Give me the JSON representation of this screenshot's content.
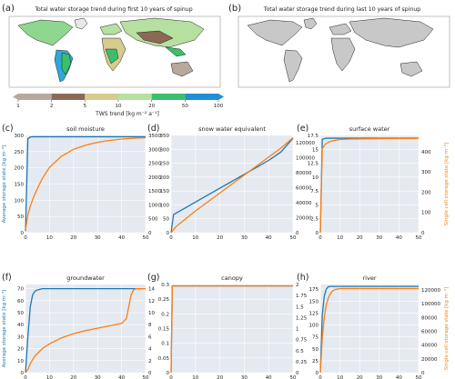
{
  "colors": {
    "blue": "#1f77b4",
    "orange": "#ff7f0e",
    "panel_bg": "#e5e9f0",
    "grid": "#ffffff",
    "land": "#c8c8c8"
  },
  "maps": [
    {
      "letter": "(a)",
      "title": "Total water storage trend during first 10 years of spinup"
    },
    {
      "letter": "(b)",
      "title": "Total water storage trend during last 10 years of spinup"
    }
  ],
  "colorbar": {
    "label": "TWS trend [kg m⁻² a⁻¹]",
    "ticks": [
      "1",
      "2",
      "5",
      "10",
      "20",
      "50",
      "100"
    ],
    "colors": [
      "#b9a89e",
      "#8b6a55",
      "#d6cc8e",
      "#b5e0a0",
      "#3bbf6e",
      "#1f8fd6"
    ]
  },
  "axis_labels": {
    "left": "Average storage state [kg m⁻²]",
    "right": "Single cell storage state [kg m⁻²]",
    "x": "Spin-up cycle [/]"
  },
  "chart_data": [
    {
      "type": "line",
      "letter": "(c)",
      "title": "soil moisture",
      "x": [
        0,
        1,
        2,
        3,
        5,
        7,
        10,
        15,
        20,
        25,
        30,
        35,
        40,
        45,
        50
      ],
      "xlim": [
        0,
        50
      ],
      "ylim": [
        0,
        300
      ],
      "ylim_right": [
        0,
        3500
      ],
      "yticks": [
        0,
        50,
        100,
        150,
        200,
        250,
        300
      ],
      "yticks_right": [
        0,
        500,
        1000,
        1500,
        2000,
        2500,
        3000,
        3500
      ],
      "series": [
        {
          "axis": "left",
          "values": [
            5,
            290,
            295,
            296,
            296,
            296,
            296,
            296,
            296,
            296,
            296,
            296,
            296,
            296,
            296
          ]
        },
        {
          "axis": "right",
          "values": [
            100,
            650,
            950,
            1200,
            1600,
            1950,
            2350,
            2750,
            3000,
            3150,
            3250,
            3320,
            3370,
            3400,
            3420
          ]
        }
      ]
    },
    {
      "type": "line",
      "letter": "(d)",
      "title": "snow water equivalent",
      "x": [
        0,
        1,
        2,
        5,
        10,
        15,
        20,
        25,
        30,
        35,
        40,
        45,
        50
      ],
      "xlim": [
        0,
        50
      ],
      "ylim": [
        0,
        350
      ],
      "ylim_right": [
        0,
        130000
      ],
      "yticks": [
        0,
        50,
        100,
        150,
        200,
        250,
        300,
        350
      ],
      "yticks_right": [
        0,
        20000,
        40000,
        60000,
        80000,
        100000,
        120000
      ],
      "series": [
        {
          "axis": "left",
          "values": [
            0,
            65,
            70,
            85,
            110,
            135,
            160,
            185,
            210,
            235,
            260,
            290,
            340
          ]
        },
        {
          "axis": "right",
          "values": [
            0,
            4000,
            8000,
            16000,
            29000,
            41000,
            53000,
            65000,
            77000,
            89000,
            101000,
            113000,
            127000
          ]
        }
      ]
    },
    {
      "type": "line",
      "letter": "(e)",
      "title": "surface water",
      "x": [
        0,
        1,
        2,
        3,
        5,
        7,
        10,
        15,
        20,
        30,
        40,
        50
      ],
      "xlim": [
        0,
        50
      ],
      "ylim": [
        0,
        17.5
      ],
      "ylim_right": [
        0,
        480
      ],
      "yticks": [
        0,
        2.5,
        5,
        7.5,
        10,
        12.5,
        15,
        17.5
      ],
      "yticks_right": [
        0,
        100,
        200,
        300,
        400
      ],
      "series": [
        {
          "axis": "left",
          "values": [
            0,
            16.8,
            16.9,
            17.0,
            17.0,
            17.0,
            17.0,
            17.0,
            17.0,
            17.0,
            17.0,
            17.0
          ]
        },
        {
          "axis": "right",
          "values": [
            0,
            415,
            430,
            440,
            450,
            455,
            460,
            462,
            463,
            464,
            465,
            465
          ]
        }
      ]
    },
    {
      "type": "line",
      "letter": "(f)",
      "title": "groundwater",
      "x": [
        0,
        1,
        2,
        3,
        4,
        5,
        7,
        10,
        15,
        20,
        25,
        30,
        35,
        40,
        42,
        43,
        44,
        45,
        46,
        50
      ],
      "xlim": [
        0,
        50
      ],
      "ylim": [
        0,
        73.5
      ],
      "ylim_right": [
        0,
        14.7
      ],
      "yticks": [
        0,
        10,
        20,
        30,
        40,
        50,
        60,
        70
      ],
      "yticks_right": [
        0,
        2,
        4,
        6,
        8,
        10,
        12,
        14
      ],
      "series": [
        {
          "axis": "left",
          "values": [
            0,
            30,
            55,
            65,
            68,
            69,
            70,
            70,
            70,
            70,
            70,
            70,
            70,
            70,
            70,
            70,
            70,
            70,
            70,
            70
          ]
        },
        {
          "axis": "right",
          "values": [
            0,
            0.5,
            1.5,
            2.2,
            2.8,
            3.2,
            4.0,
            4.8,
            5.8,
            6.5,
            7.0,
            7.4,
            7.8,
            8.2,
            9.0,
            11.0,
            13.0,
            13.8,
            14.0,
            14.0
          ]
        }
      ]
    },
    {
      "type": "line",
      "letter": "(g)",
      "title": "canopy",
      "x": [
        0,
        0.5,
        1,
        5,
        10,
        20,
        30,
        40,
        50
      ],
      "xlim": [
        0,
        50
      ],
      "ylim": [
        0,
        0.3
      ],
      "ylim_right": [
        0,
        2.0
      ],
      "yticks": [
        0,
        0.05,
        0.1,
        0.15,
        0.2,
        0.25,
        0.3
      ],
      "yticks_right": [
        0,
        0.25,
        0.5,
        0.75,
        1.0,
        1.25,
        1.5,
        1.75,
        2.0
      ],
      "series": [
        {
          "axis": "left",
          "values": [
            0,
            0.295,
            0.295,
            0.295,
            0.295,
            0.295,
            0.295,
            0.295,
            0.295
          ]
        },
        {
          "axis": "right",
          "values": [
            0,
            1.97,
            1.97,
            1.97,
            1.97,
            1.97,
            1.97,
            1.97,
            1.97
          ]
        }
      ]
    },
    {
      "type": "line",
      "letter": "(h)",
      "title": "river",
      "x": [
        0,
        1,
        2,
        3,
        4,
        5,
        6,
        7,
        8,
        10,
        15,
        20,
        30,
        40,
        50
      ],
      "xlim": [
        0,
        50
      ],
      "ylim": [
        0,
        185
      ],
      "ylim_right": [
        0,
        128000
      ],
      "yticks": [
        0,
        25,
        50,
        75,
        100,
        125,
        150,
        175
      ],
      "yticks_right": [
        0,
        20000,
        40000,
        60000,
        80000,
        100000,
        120000
      ],
      "series": [
        {
          "axis": "left",
          "values": [
            0,
            120,
            160,
            175,
            180,
            181,
            181,
            181,
            181,
            181,
            181,
            181,
            181,
            181,
            181
          ]
        },
        {
          "axis": "right",
          "values": [
            0,
            50000,
            80000,
            98000,
            108000,
            114000,
            118000,
            120000,
            121000,
            122000,
            122000,
            122000,
            122000,
            122000,
            122000
          ]
        }
      ]
    }
  ]
}
